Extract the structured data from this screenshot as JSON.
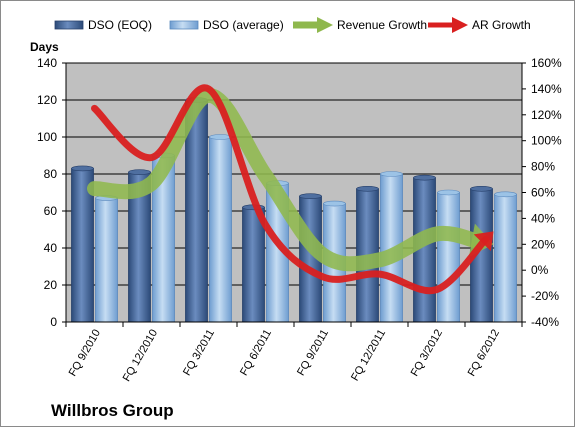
{
  "colors": {
    "plot_bg": "#c0c0c0",
    "gridline": "#000000",
    "dso_eoq": "#4f6fa0",
    "dso_eoq_dark": "#27406b",
    "dso_avg": "#9cc3e6",
    "dso_avg_dark": "#5b89bd",
    "revenue": "#8fb84d",
    "ar": "#d92020"
  },
  "chart_data": {
    "type": "bar",
    "title": "Willbros Group",
    "ylabel": "Days",
    "xlabel": "",
    "categories": [
      "FQ 9/2010",
      "FQ 12/2010",
      "FQ 3/2011",
      "FQ 6/2011",
      "FQ 9/2011",
      "FQ 12/2011",
      "FQ 3/2012",
      "FQ 6/2012"
    ],
    "ylim": [
      0,
      140
    ],
    "yticks": [
      "0",
      "20",
      "40",
      "60",
      "80",
      "100",
      "120",
      "140"
    ],
    "y2lim": [
      -40,
      160
    ],
    "y2ticks": [
      "-40%",
      "-20%",
      "0%",
      "20%",
      "40%",
      "60%",
      "80%",
      "100%",
      "120%",
      "140%",
      "160%"
    ],
    "grid": true,
    "legend_position": "top",
    "series": [
      {
        "name": "DSO (EOQ)",
        "type": "bar",
        "axis": "left",
        "values": [
          83,
          81,
          120,
          62,
          68,
          72,
          78,
          72
        ]
      },
      {
        "name": "DSO (average)",
        "type": "bar",
        "axis": "left",
        "values": [
          67,
          90,
          100,
          75,
          64,
          80,
          70,
          69
        ]
      },
      {
        "name": "Revenue Growth",
        "type": "line",
        "axis": "right",
        "values": [
          63,
          67,
          135,
          73,
          12,
          8,
          28,
          20
        ]
      },
      {
        "name": "AR Growth",
        "type": "line",
        "axis": "right",
        "values": [
          125,
          87,
          140,
          35,
          -5,
          -3,
          -15,
          30
        ]
      }
    ]
  }
}
